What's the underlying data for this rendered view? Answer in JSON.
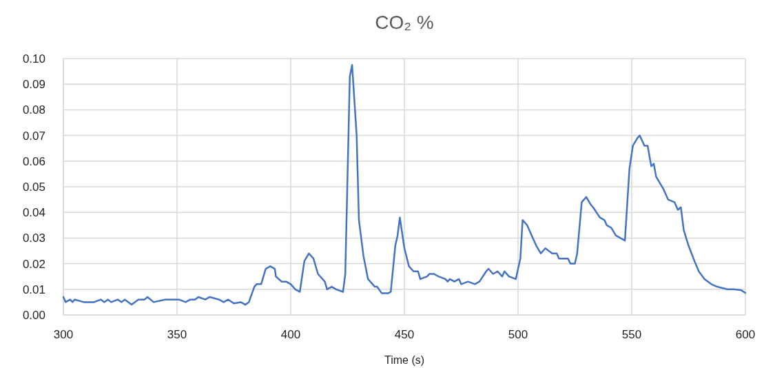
{
  "chart_data": {
    "type": "line",
    "title": "CO₂ %",
    "xlabel": "Time (s)",
    "x": [
      300,
      301,
      303,
      304,
      305,
      309,
      313.5,
      316.5,
      318,
      319.6,
      321,
      324,
      325.6,
      327,
      330,
      333,
      335.7,
      337,
      339.7,
      344.8,
      350.8,
      353.8,
      355.8,
      357.9,
      359.4,
      362.4,
      364.4,
      368.5,
      370.5,
      372.5,
      375,
      378,
      380,
      381.6,
      384,
      385,
      387,
      389,
      391,
      393,
      393.5,
      396,
      398,
      400,
      402,
      404,
      406,
      408,
      410,
      412,
      415,
      416,
      418,
      420,
      423,
      424,
      426,
      427,
      429,
      430,
      432,
      434,
      437,
      438,
      440,
      443,
      444,
      446,
      447,
      448,
      450,
      452,
      454,
      456,
      457,
      460,
      461,
      463,
      465,
      468,
      469,
      470,
      472,
      474,
      475,
      478,
      481,
      483,
      486,
      487,
      489,
      491,
      493,
      494,
      496,
      499,
      501,
      502,
      504,
      506,
      508,
      510,
      512,
      515,
      517,
      518,
      522,
      523,
      525,
      526,
      528,
      530,
      532,
      533,
      536,
      538,
      539,
      541,
      543,
      545,
      547,
      549,
      550.5,
      552.5,
      553.5,
      555.6,
      557,
      558.6,
      559.7,
      560.7,
      562.7,
      564,
      566,
      568.8,
      570.3,
      571.6,
      572.9,
      575,
      577.6,
      579.5,
      582,
      585,
      587.6,
      592,
      594.7,
      598,
      600
    ],
    "series": [
      {
        "color": "#4472c4",
        "values": [
          0.007,
          0.005,
          0.006,
          0.005,
          0.006,
          0.005,
          0.005,
          0.006,
          0.005,
          0.006,
          0.005,
          0.006,
          0.005,
          0.006,
          0.004,
          0.006,
          0.006,
          0.007,
          0.005,
          0.006,
          0.006,
          0.005,
          0.006,
          0.006,
          0.007,
          0.006,
          0.007,
          0.006,
          0.005,
          0.006,
          0.0045,
          0.005,
          0.004,
          0.005,
          0.011,
          0.012,
          0.012,
          0.018,
          0.019,
          0.018,
          0.015,
          0.013,
          0.013,
          0.012,
          0.01,
          0.009,
          0.021,
          0.024,
          0.022,
          0.016,
          0.013,
          0.01,
          0.011,
          0.01,
          0.009,
          0.016,
          0.093,
          0.0975,
          0.07,
          0.037,
          0.023,
          0.014,
          0.011,
          0.011,
          0.0085,
          0.0085,
          0.009,
          0.027,
          0.031,
          0.038,
          0.026,
          0.019,
          0.017,
          0.017,
          0.014,
          0.015,
          0.016,
          0.016,
          0.015,
          0.014,
          0.013,
          0.014,
          0.013,
          0.014,
          0.012,
          0.013,
          0.012,
          0.013,
          0.017,
          0.018,
          0.016,
          0.017,
          0.015,
          0.017,
          0.015,
          0.014,
          0.022,
          0.037,
          0.035,
          0.031,
          0.027,
          0.024,
          0.026,
          0.024,
          0.024,
          0.022,
          0.022,
          0.02,
          0.02,
          0.024,
          0.044,
          0.046,
          0.043,
          0.042,
          0.038,
          0.037,
          0.035,
          0.034,
          0.031,
          0.03,
          0.029,
          0.057,
          0.066,
          0.069,
          0.07,
          0.066,
          0.066,
          0.058,
          0.059,
          0.054,
          0.051,
          0.049,
          0.045,
          0.044,
          0.041,
          0.042,
          0.033,
          0.027,
          0.021,
          0.017,
          0.014,
          0.012,
          0.011,
          0.01,
          0.01,
          0.0097,
          0.0086
        ]
      }
    ],
    "xlim": [
      300,
      600
    ],
    "xticks": [
      300,
      350,
      400,
      450,
      500,
      550,
      600
    ],
    "ylim": [
      0,
      0.1
    ],
    "yticks": [
      {
        "value": 0,
        "label": "0.00"
      },
      {
        "value": 0.01,
        "label": "0.01"
      },
      {
        "value": 0.02,
        "label": "0.02"
      },
      {
        "value": 0.03,
        "label": "0.03"
      },
      {
        "value": 0.04,
        "label": "0.04"
      },
      {
        "value": 0.05,
        "label": "0.05"
      },
      {
        "value": 0.06,
        "label": "0.06"
      },
      {
        "value": 0.07,
        "label": "0.07"
      },
      {
        "value": 0.08,
        "label": "0.08"
      },
      {
        "value": 0.09,
        "label": "0.09"
      },
      {
        "value": 0.1,
        "label": "0.10"
      }
    ],
    "grid": true,
    "marker": "none",
    "line_style": "solid"
  }
}
